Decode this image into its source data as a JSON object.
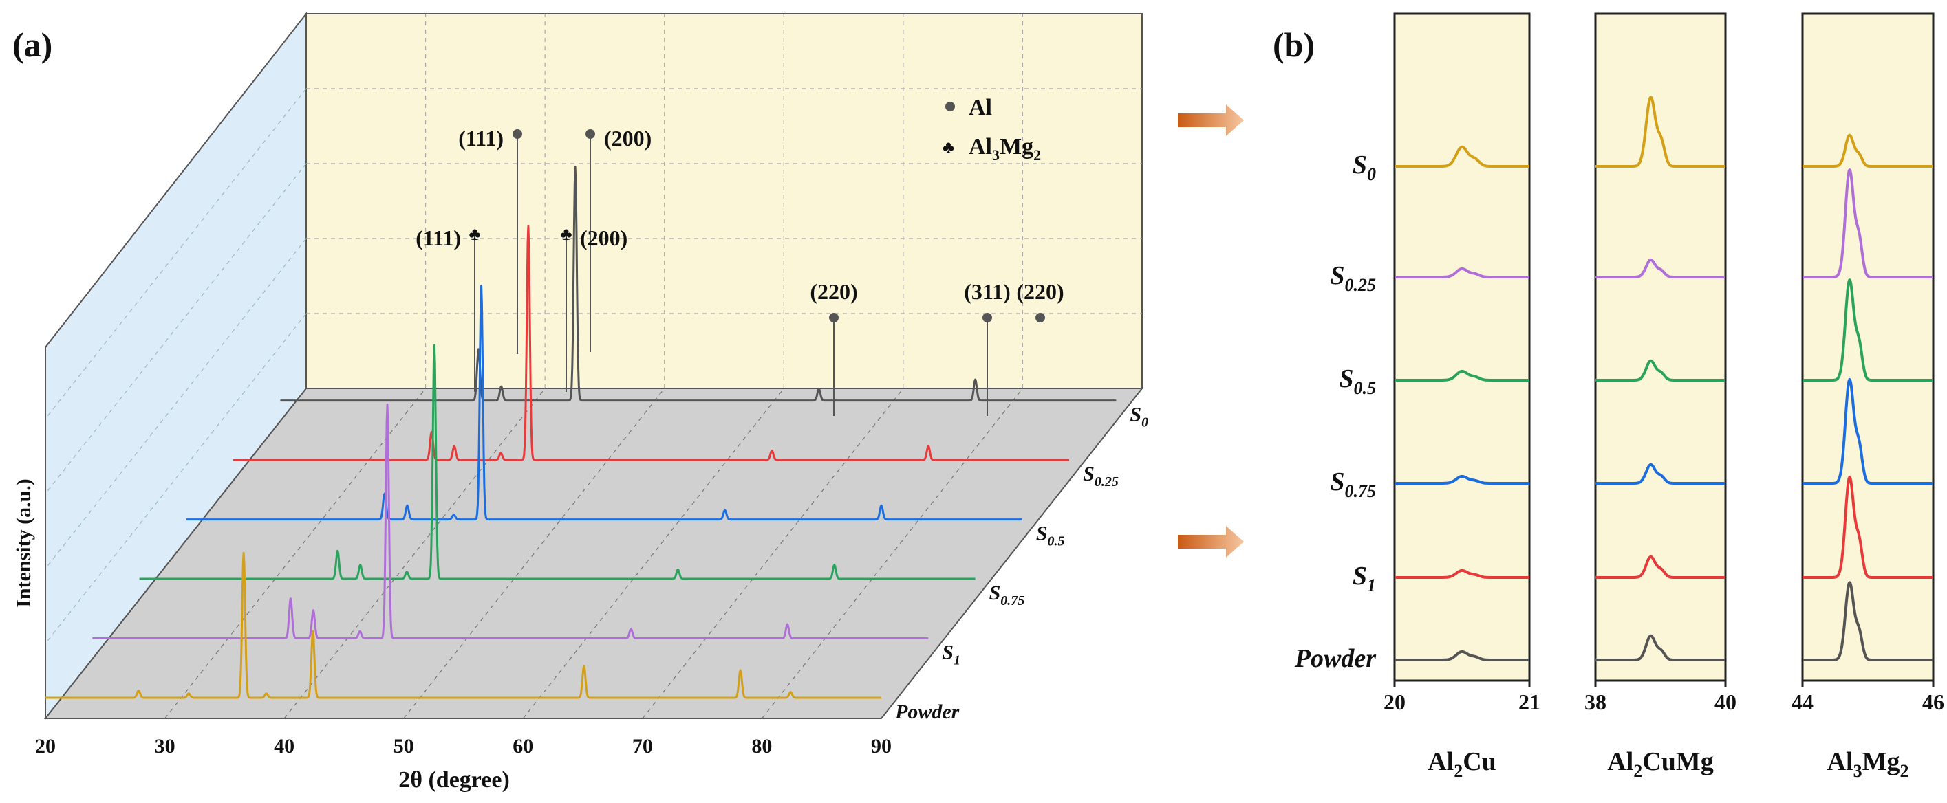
{
  "figure": {
    "panel_a_label": "(a)",
    "panel_b_label": "(b)"
  },
  "chart_data": [
    {
      "type": "line",
      "panel": "(a)",
      "style": "3D waterfall XRD patterns",
      "xlabel": "2θ (degree)",
      "ylabel": "Intensity (a.u.)",
      "xlim": [
        20,
        90
      ],
      "xticks": [
        "20",
        "30",
        "40",
        "50",
        "60",
        "70",
        "80",
        "90"
      ],
      "legend": [
        {
          "marker": "●",
          "label_main": "Al",
          "label_sub": ""
        },
        {
          "marker": "♣",
          "label_main": "Al",
          "label_sub": "3",
          "label_rest": "Mg",
          "label_sub2": "2"
        }
      ],
      "annotations": [
        {
          "text": "(111)",
          "phase": "Al",
          "two_theta": 38.5
        },
        {
          "text": "(200)",
          "phase": "Al",
          "two_theta": 44.7
        },
        {
          "text": "(111)",
          "phase": "Al3Mg2",
          "two_theta": 36.6
        },
        {
          "text": "(200)",
          "phase": "Al3Mg2",
          "two_theta": 42.4
        },
        {
          "text": "(220)",
          "phase": "Al",
          "two_theta": 65.1
        },
        {
          "text": "(311)",
          "phase": "Al",
          "two_theta": 78.2
        },
        {
          "text": "(220)",
          "phase": "Al",
          "two_theta": 82.4
        }
      ],
      "series": [
        {
          "name": "S0",
          "label_main": "S",
          "label_sub": "0",
          "color": "#555555",
          "peaks": [
            {
              "x": 36.6,
              "h": 0.22
            },
            {
              "x": 38.5,
              "h": 0.06
            },
            {
              "x": 44.7,
              "h": 1.0
            },
            {
              "x": 65.1,
              "h": 0.05
            },
            {
              "x": 78.2,
              "h": 0.09
            }
          ]
        },
        {
          "name": "S0.25",
          "label_main": "S",
          "label_sub": "0.25",
          "color": "#e8393b",
          "peaks": [
            {
              "x": 36.6,
              "h": 0.12
            },
            {
              "x": 38.5,
              "h": 0.06
            },
            {
              "x": 42.4,
              "h": 0.03
            },
            {
              "x": 44.7,
              "h": 1.0
            },
            {
              "x": 65.1,
              "h": 0.04
            },
            {
              "x": 78.2,
              "h": 0.06
            }
          ]
        },
        {
          "name": "S0.5",
          "label_main": "S",
          "label_sub": "0.5",
          "color": "#1c6ee0",
          "peaks": [
            {
              "x": 36.6,
              "h": 0.11
            },
            {
              "x": 38.5,
              "h": 0.06
            },
            {
              "x": 42.4,
              "h": 0.02
            },
            {
              "x": 44.7,
              "h": 1.0
            },
            {
              "x": 65.1,
              "h": 0.04
            },
            {
              "x": 78.2,
              "h": 0.06
            }
          ]
        },
        {
          "name": "S0.75",
          "label_main": "S",
          "label_sub": "0.75",
          "color": "#2aa45c",
          "peaks": [
            {
              "x": 36.6,
              "h": 0.12
            },
            {
              "x": 38.5,
              "h": 0.06
            },
            {
              "x": 42.4,
              "h": 0.03
            },
            {
              "x": 44.7,
              "h": 1.0
            },
            {
              "x": 65.1,
              "h": 0.04
            },
            {
              "x": 78.2,
              "h": 0.06
            }
          ]
        },
        {
          "name": "S1",
          "label_main": "S",
          "label_sub": "1",
          "color": "#b06fd8",
          "peaks": [
            {
              "x": 36.6,
              "h": 0.17
            },
            {
              "x": 38.5,
              "h": 0.12
            },
            {
              "x": 42.4,
              "h": 0.03
            },
            {
              "x": 44.7,
              "h": 1.0
            },
            {
              "x": 65.1,
              "h": 0.04
            },
            {
              "x": 78.2,
              "h": 0.06
            }
          ]
        },
        {
          "name": "Powder",
          "label_main": "Powder",
          "label_sub": "",
          "color": "#d4a017",
          "peaks": [
            {
              "x": 36.6,
              "h": 1.0
            },
            {
              "x": 38.5,
              "h": 0.03
            },
            {
              "x": 42.4,
              "h": 0.46
            },
            {
              "x": 27.8,
              "h": 0.05
            },
            {
              "x": 32.0,
              "h": 0.03
            },
            {
              "x": 65.1,
              "h": 0.22
            },
            {
              "x": 78.2,
              "h": 0.19
            },
            {
              "x": 82.4,
              "h": 0.04
            }
          ]
        }
      ]
    },
    {
      "type": "line",
      "panel": "(b)",
      "style": "zoomed XRD windows",
      "samples": [
        {
          "label_main": "S",
          "label_sub": "0",
          "color": "#d4a017"
        },
        {
          "label_main": "S",
          "label_sub": "0.25",
          "color": "#b06fd8"
        },
        {
          "label_main": "S",
          "label_sub": "0.5",
          "color": "#2aa45c"
        },
        {
          "label_main": "S",
          "label_sub": "0.75",
          "color": "#1c6ee0"
        },
        {
          "label_main": "S",
          "label_sub": "1",
          "color": "#e8393b"
        },
        {
          "label_main": "Powder",
          "label_sub": "",
          "color": "#555555"
        }
      ],
      "windows": [
        {
          "phase_parts": [
            {
              "t": "Al"
            },
            {
              "t": "2",
              "sub": true
            },
            {
              "t": "Cu"
            }
          ],
          "xlim": [
            20,
            21
          ],
          "xticks": [
            "20",
            "21"
          ],
          "peak_x": 20.5,
          "width": 0.06,
          "heights": [
            0.28,
            0.12,
            0.13,
            0.1,
            0.1,
            0.12
          ]
        },
        {
          "phase_parts": [
            {
              "t": "Al"
            },
            {
              "t": "2",
              "sub": true
            },
            {
              "t": "CuMg"
            }
          ],
          "xlim": [
            38,
            40
          ],
          "xticks": [
            "38",
            "40"
          ],
          "peak_x": 38.85,
          "width": 0.1,
          "heights": [
            1.0,
            0.25,
            0.28,
            0.27,
            0.3,
            0.35
          ]
        },
        {
          "phase_parts": [
            {
              "t": "Al"
            },
            {
              "t": "3",
              "sub": true
            },
            {
              "t": "Mg"
            },
            {
              "t": "2",
              "sub": true
            }
          ],
          "xlim": [
            44,
            46
          ],
          "xticks": [
            "44",
            "46"
          ],
          "peak_x": 44.72,
          "width": 0.09,
          "heights": [
            0.45,
            1.55,
            1.45,
            1.5,
            1.45,
            1.12
          ]
        }
      ]
    }
  ]
}
